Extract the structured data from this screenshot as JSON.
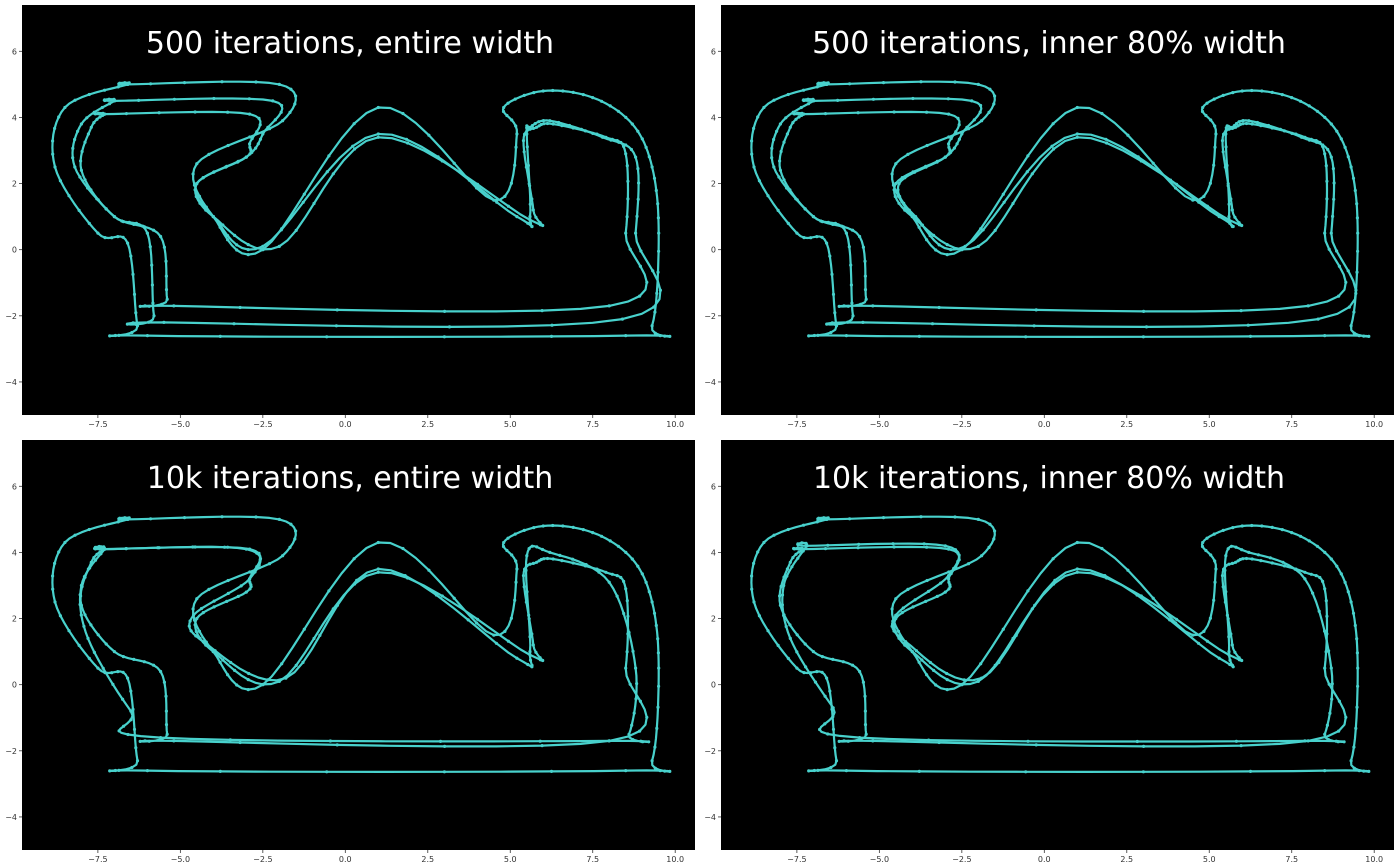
{
  "colors": {
    "plot_background": "#000000",
    "page_background": "#ffffff",
    "track_line": "#48d1cc",
    "title_text": "#ffffff",
    "tick_text": "#333333"
  },
  "chart_data": [
    {
      "type": "line",
      "title": "500 iterations, entire width",
      "xlim": [
        -9.8,
        10.6
      ],
      "ylim": [
        -5.0,
        7.4
      ],
      "xticks": [
        -7.5,
        -5.0,
        -2.5,
        0.0,
        2.5,
        5.0,
        7.5,
        10.0
      ],
      "xtick_labels": [
        "−7.5",
        "−5.0",
        "−2.5",
        "0.0",
        "2.5",
        "5.0",
        "7.5",
        "10.0"
      ],
      "yticks": [
        6,
        4,
        2,
        0,
        -2,
        -4
      ],
      "ytick_labels": [
        "6",
        "4",
        "2",
        "0",
        "−2",
        "−4"
      ],
      "grid": false,
      "series": [
        {
          "role": "outer",
          "x": [
            -6.6,
            -2.0,
            -1.9,
            -4.5,
            -4.0,
            -2.5,
            1.0,
            4.5,
            5.2,
            4.8,
            6.0,
            7.5,
            8.7,
            9.3,
            9.5,
            9.3,
            8.5,
            -6.0,
            -6.3,
            -6.6,
            -7.5,
            -8.8,
            -8.5,
            -6.6
          ],
          "y": [
            5.0,
            5.0,
            3.9,
            2.6,
            1.0,
            0.0,
            4.3,
            1.5,
            3.5,
            4.3,
            4.8,
            4.6,
            3.8,
            2.5,
            0.5,
            -2.3,
            -2.6,
            -2.6,
            -2.3,
            0.2,
            0.5,
            2.5,
            4.3,
            5.0
          ]
        },
        {
          "role": "racing",
          "x": [
            -7.0,
            -2.2,
            -2.5,
            -3.0,
            -4.5,
            -4.0,
            -2.5,
            1.0,
            5.2,
            5.6,
            5.5,
            5.6,
            6.2,
            7.8,
            8.8,
            8.8,
            8.4,
            -5.5,
            -5.8,
            -6.0,
            -7.0,
            -8.2,
            -8.0,
            -7.0
          ],
          "y": [
            4.5,
            4.5,
            3.5,
            2.8,
            2.0,
            1.0,
            0.1,
            3.5,
            1.0,
            1.0,
            3.5,
            3.7,
            3.9,
            3.4,
            2.8,
            0.5,
            -2.1,
            -2.2,
            -2.0,
            0.5,
            1.0,
            2.5,
            3.8,
            4.5
          ]
        },
        {
          "role": "inner",
          "x": [
            -7.3,
            -2.9,
            -2.9,
            -3.0,
            -4.5,
            -4.0,
            -2.0,
            1.0,
            5.6,
            5.7,
            5.4,
            5.8,
            6.3,
            7.9,
            8.5,
            8.5,
            8.0,
            -5.2,
            -5.4,
            -5.6,
            -7.0,
            -8.0,
            -7.7,
            -7.3
          ],
          "y": [
            4.1,
            4.1,
            3.2,
            2.8,
            2.0,
            1.0,
            0.1,
            3.4,
            0.9,
            1.2,
            3.3,
            3.7,
            3.8,
            3.4,
            2.9,
            0.5,
            -1.7,
            -1.7,
            -1.5,
            0.4,
            1.0,
            2.4,
            3.7,
            4.1
          ]
        }
      ]
    },
    {
      "type": "line",
      "title": "500 iterations, inner 80% width",
      "xlim": [
        -9.8,
        10.6
      ],
      "ylim": [
        -5.0,
        7.4
      ],
      "xticks": [
        -7.5,
        -5.0,
        -2.5,
        0.0,
        2.5,
        5.0,
        7.5,
        10.0
      ],
      "xtick_labels": [
        "−7.5",
        "−5.0",
        "−2.5",
        "0.0",
        "2.5",
        "5.0",
        "7.5",
        "10.0"
      ],
      "yticks": [
        6,
        4,
        2,
        0,
        -2,
        -4
      ],
      "ytick_labels": [
        "6",
        "4",
        "2",
        "0",
        "−2",
        "−4"
      ],
      "grid": false,
      "series": [
        {
          "role": "outer",
          "x": [
            -6.6,
            -2.0,
            -1.9,
            -4.5,
            -4.0,
            -2.5,
            1.0,
            4.5,
            5.2,
            4.8,
            6.0,
            7.5,
            8.7,
            9.3,
            9.5,
            9.3,
            8.5,
            -6.0,
            -6.3,
            -6.6,
            -7.5,
            -8.8,
            -8.5,
            -6.6
          ],
          "y": [
            5.0,
            5.0,
            3.9,
            2.6,
            1.0,
            0.0,
            4.3,
            1.5,
            3.5,
            4.3,
            4.8,
            4.6,
            3.8,
            2.5,
            0.5,
            -2.3,
            -2.6,
            -2.6,
            -2.3,
            0.2,
            0.5,
            2.5,
            4.3,
            5.0
          ]
        },
        {
          "role": "racing",
          "x": [
            -7.0,
            -2.2,
            -2.5,
            -3.0,
            -4.4,
            -3.9,
            -2.4,
            1.0,
            5.3,
            5.6,
            5.5,
            5.7,
            6.2,
            7.8,
            8.7,
            8.7,
            8.3,
            -5.5,
            -5.8,
            -6.0,
            -7.0,
            -8.2,
            -8.0,
            -7.0
          ],
          "y": [
            4.5,
            4.5,
            3.5,
            2.8,
            2.0,
            1.0,
            0.1,
            3.5,
            1.0,
            1.0,
            3.5,
            3.7,
            3.9,
            3.4,
            2.8,
            0.5,
            -2.1,
            -2.2,
            -2.0,
            0.5,
            1.0,
            2.5,
            3.8,
            4.5
          ]
        },
        {
          "role": "inner",
          "x": [
            -7.3,
            -2.9,
            -2.9,
            -3.0,
            -4.5,
            -4.0,
            -2.0,
            1.0,
            5.6,
            5.7,
            5.4,
            5.8,
            6.3,
            7.9,
            8.5,
            8.5,
            8.0,
            -5.2,
            -5.4,
            -5.6,
            -7.0,
            -8.0,
            -7.7,
            -7.3
          ],
          "y": [
            4.1,
            4.1,
            3.2,
            2.8,
            2.0,
            1.0,
            0.1,
            3.4,
            0.9,
            1.2,
            3.3,
            3.7,
            3.8,
            3.4,
            2.9,
            0.5,
            -1.7,
            -1.7,
            -1.5,
            0.4,
            1.0,
            2.4,
            3.7,
            4.1
          ]
        }
      ]
    },
    {
      "type": "line",
      "title": "10k iterations, entire width",
      "xlim": [
        -9.8,
        10.6
      ],
      "ylim": [
        -5.0,
        7.4
      ],
      "xticks": [
        -7.5,
        -5.0,
        -2.5,
        0.0,
        2.5,
        5.0,
        7.5,
        10.0
      ],
      "xtick_labels": [
        "−7.5",
        "−5.0",
        "−2.5",
        "0.0",
        "2.5",
        "5.0",
        "7.5",
        "10.0"
      ],
      "yticks": [
        6,
        4,
        2,
        0,
        -2,
        -4
      ],
      "ytick_labels": [
        "6",
        "4",
        "2",
        "0",
        "−2",
        "−4"
      ],
      "grid": false,
      "series": [
        {
          "role": "outer",
          "x": [
            -6.6,
            -2.0,
            -1.9,
            -4.5,
            -4.0,
            -2.5,
            1.0,
            4.5,
            5.2,
            4.8,
            6.0,
            7.5,
            8.7,
            9.3,
            9.5,
            9.3,
            8.5,
            -6.0,
            -6.3,
            -6.6,
            -7.5,
            -8.8,
            -8.5,
            -6.6
          ],
          "y": [
            5.0,
            5.0,
            3.9,
            2.6,
            1.0,
            0.0,
            4.3,
            1.5,
            3.5,
            4.3,
            4.8,
            4.6,
            3.8,
            2.5,
            0.5,
            -2.3,
            -2.6,
            -2.6,
            -2.3,
            0.2,
            0.5,
            2.5,
            4.3,
            5.0
          ]
        },
        {
          "role": "racing",
          "x": [
            -7.3,
            -3.0,
            -2.9,
            -4.6,
            -4.3,
            -1.8,
            1.0,
            5.2,
            5.6,
            5.5,
            6.2,
            8.0,
            8.8,
            8.6,
            8.0,
            -5.6,
            -6.5,
            -7.8,
            -8.0,
            -7.3
          ],
          "y": [
            4.1,
            4.1,
            3.2,
            2.1,
            1.3,
            0.2,
            3.5,
            0.8,
            1.0,
            3.9,
            4.0,
            3.1,
            0.5,
            -1.5,
            -1.7,
            -1.6,
            -0.8,
            1.4,
            3.0,
            4.1
          ]
        },
        {
          "role": "inner",
          "x": [
            -7.3,
            -2.9,
            -2.9,
            -3.0,
            -4.5,
            -4.0,
            -2.0,
            1.0,
            5.6,
            5.7,
            5.4,
            5.8,
            6.3,
            7.9,
            8.5,
            8.5,
            8.0,
            -5.2,
            -5.4,
            -5.6,
            -7.0,
            -8.0,
            -7.7,
            -7.3
          ],
          "y": [
            4.1,
            4.1,
            3.2,
            2.8,
            2.0,
            1.0,
            0.1,
            3.4,
            0.9,
            1.2,
            3.3,
            3.7,
            3.8,
            3.4,
            2.9,
            0.5,
            -1.7,
            -1.7,
            -1.5,
            0.4,
            1.0,
            2.4,
            3.7,
            4.1
          ]
        }
      ]
    },
    {
      "type": "line",
      "title": "10k iterations, inner 80% width",
      "xlim": [
        -9.8,
        10.6
      ],
      "ylim": [
        -5.0,
        7.4
      ],
      "xticks": [
        -7.5,
        -5.0,
        -2.5,
        0.0,
        2.5,
        5.0,
        7.5,
        10.0
      ],
      "xtick_labels": [
        "−7.5",
        "−5.0",
        "−2.5",
        "0.0",
        "2.5",
        "5.0",
        "7.5",
        "10.0"
      ],
      "yticks": [
        6,
        4,
        2,
        0,
        -2,
        -4
      ],
      "ytick_labels": [
        "6",
        "4",
        "2",
        "0",
        "−2",
        "−4"
      ],
      "grid": false,
      "series": [
        {
          "role": "outer",
          "x": [
            -6.6,
            -2.0,
            -1.9,
            -4.5,
            -4.0,
            -2.5,
            1.0,
            4.5,
            5.2,
            4.8,
            6.0,
            7.5,
            8.7,
            9.3,
            9.5,
            9.3,
            8.5,
            -6.0,
            -6.3,
            -6.6,
            -7.5,
            -8.8,
            -8.5,
            -6.6
          ],
          "y": [
            5.0,
            5.0,
            3.9,
            2.6,
            1.0,
            0.0,
            4.3,
            1.5,
            3.5,
            4.3,
            4.8,
            4.6,
            3.8,
            2.5,
            0.5,
            -2.3,
            -2.6,
            -2.6,
            -2.3,
            0.2,
            0.5,
            2.5,
            4.3,
            5.0
          ]
        },
        {
          "role": "racing",
          "x": [
            -7.2,
            -3.0,
            -2.9,
            -4.5,
            -4.2,
            -1.9,
            1.0,
            5.3,
            5.6,
            5.5,
            6.2,
            7.9,
            8.7,
            8.5,
            7.9,
            -5.6,
            -6.4,
            -7.7,
            -7.9,
            -7.2
          ],
          "y": [
            4.2,
            4.2,
            3.3,
            2.1,
            1.3,
            0.2,
            3.5,
            0.8,
            1.0,
            3.9,
            4.0,
            3.2,
            0.5,
            -1.5,
            -1.7,
            -1.6,
            -0.7,
            1.4,
            3.0,
            4.2
          ]
        },
        {
          "role": "inner",
          "x": [
            -7.3,
            -2.9,
            -2.9,
            -3.0,
            -4.5,
            -4.0,
            -2.0,
            1.0,
            5.6,
            5.7,
            5.4,
            5.8,
            6.3,
            7.9,
            8.5,
            8.5,
            8.0,
            -5.2,
            -5.4,
            -5.6,
            -7.0,
            -8.0,
            -7.7,
            -7.3
          ],
          "y": [
            4.1,
            4.1,
            3.2,
            2.8,
            2.0,
            1.0,
            0.1,
            3.4,
            0.9,
            1.2,
            3.3,
            3.7,
            3.8,
            3.4,
            2.9,
            0.5,
            -1.7,
            -1.7,
            -1.5,
            0.4,
            1.0,
            2.4,
            3.7,
            4.1
          ]
        }
      ]
    }
  ]
}
